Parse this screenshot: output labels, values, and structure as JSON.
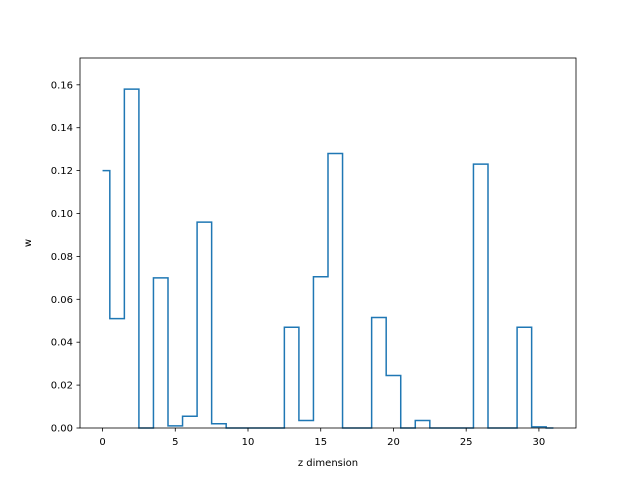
{
  "chart_data": {
    "type": "step",
    "title": "",
    "xlabel": "z dimension",
    "ylabel": "w",
    "xlim": [
      -1.55,
      32.55
    ],
    "ylim": [
      0,
      0.1725
    ],
    "grid": false,
    "legend": "none",
    "x_ticks": [
      0,
      5,
      10,
      15,
      20,
      25,
      30
    ],
    "x_tick_labels": [
      "0",
      "5",
      "10",
      "15",
      "20",
      "25",
      "30"
    ],
    "y_ticks": [
      0,
      0.02,
      0.04,
      0.06,
      0.08,
      0.1,
      0.12,
      0.14,
      0.16
    ],
    "y_tick_labels": [
      "0.00",
      "0.02",
      "0.04",
      "0.06",
      "0.08",
      "0.10",
      "0.12",
      "0.14",
      "0.16"
    ],
    "series": [
      {
        "color": "#1f77b4",
        "step_where": "mid",
        "x": [
          0,
          1,
          2,
          3,
          4,
          5,
          6,
          7,
          8,
          9,
          10,
          11,
          12,
          13,
          14,
          15,
          16,
          17,
          18,
          19,
          20,
          21,
          22,
          23,
          24,
          25,
          26,
          27,
          28,
          29,
          30,
          31
        ],
        "values": [
          0.12,
          0.051,
          0.158,
          0.0,
          0.07,
          0.001,
          0.0055,
          0.096,
          0.002,
          0.0,
          0.0,
          0.0,
          0.0,
          0.047,
          0.0035,
          0.0705,
          0.128,
          0.0,
          0.0,
          0.0515,
          0.0245,
          0.0,
          0.0035,
          0.0,
          0.0,
          0.0,
          0.123,
          0.0,
          0.0,
          0.047,
          0.0005,
          0.0
        ]
      }
    ]
  }
}
